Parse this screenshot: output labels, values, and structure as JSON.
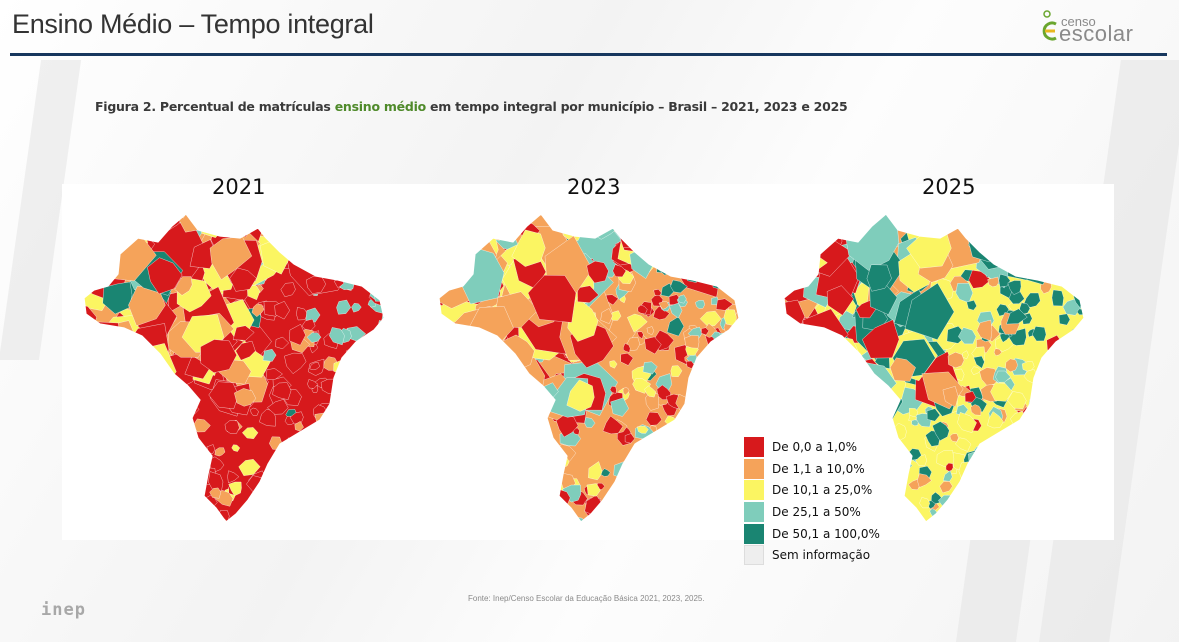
{
  "header": {
    "title": "Ensino Médio – Tempo integral",
    "logo": {
      "line1": "censo",
      "line2": "escolar"
    }
  },
  "figure": {
    "caption_prefix": "Figura 2. Percentual de matrículas ",
    "caption_highlight": "ensino médio",
    "caption_suffix": " em tempo integral por município – Brasil – 2021, 2023 e 2025"
  },
  "maps": [
    {
      "year": "2021",
      "dominant_category": 0
    },
    {
      "year": "2023",
      "dominant_category": 1
    },
    {
      "year": "2025",
      "dominant_category": 2
    }
  ],
  "legend": {
    "items": [
      {
        "label": "De 0,0 a 1,0%",
        "color": "#d7191c"
      },
      {
        "label": "De 1,1 a 10,0%",
        "color": "#f5a35a"
      },
      {
        "label": "De 10,1 a 25,0%",
        "color": "#fbf562"
      },
      {
        "label": "De 25,1 a 50%",
        "color": "#7fcdbb"
      },
      {
        "label": "De 50,1 a 100,0%",
        "color": "#1a8572"
      },
      {
        "label": "Sem informação",
        "color": "#eeeeee"
      }
    ]
  },
  "footer": {
    "source": "Fonte: Inep/Censo Escolar da Educação Básica 2021, 2023, 2025.",
    "inep_logo": "inep"
  }
}
